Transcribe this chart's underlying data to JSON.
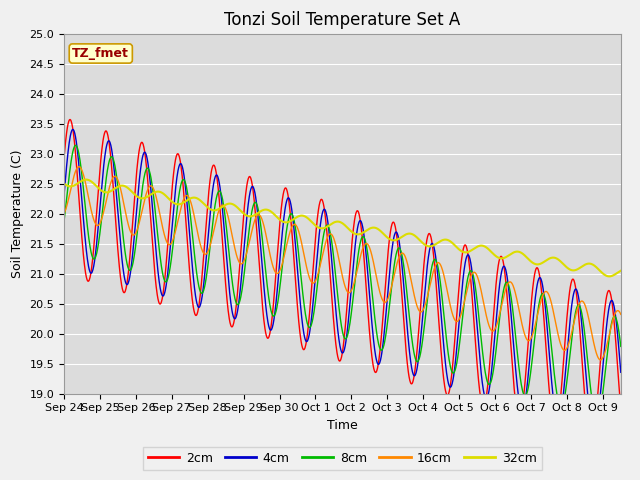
{
  "title": "Tonzi Soil Temperature Set A",
  "xlabel": "Time",
  "ylabel": "Soil Temperature (C)",
  "ylim": [
    19.0,
    25.0
  ],
  "yticks": [
    19.0,
    19.5,
    20.0,
    20.5,
    21.0,
    21.5,
    22.0,
    22.5,
    23.0,
    23.5,
    24.0,
    24.5,
    25.0
  ],
  "xtick_labels": [
    "Sep 24",
    "Sep 25",
    "Sep 26",
    "Sep 27",
    "Sep 28",
    "Sep 29",
    "Sep 30",
    "Oct 1",
    "Oct 2",
    "Oct 3",
    "Oct 4",
    "Oct 5",
    "Oct 6",
    "Oct 7",
    "Oct 8",
    "Oct 9"
  ],
  "series_colors": [
    "#ff0000",
    "#0000cc",
    "#00bb00",
    "#ff8800",
    "#dddd00"
  ],
  "series_labels": [
    "2cm",
    "4cm",
    "8cm",
    "16cm",
    "32cm"
  ],
  "annotation_text": "TZ_fmet",
  "annotation_bbox_facecolor": "#ffffcc",
  "annotation_bbox_edgecolor": "#cc9900",
  "background_color": "#dcdcdc",
  "grid_color": "#ffffff",
  "total_days": 15.5,
  "title_fontsize": 12,
  "label_fontsize": 9,
  "tick_fontsize": 8,
  "legend_fontsize": 9
}
